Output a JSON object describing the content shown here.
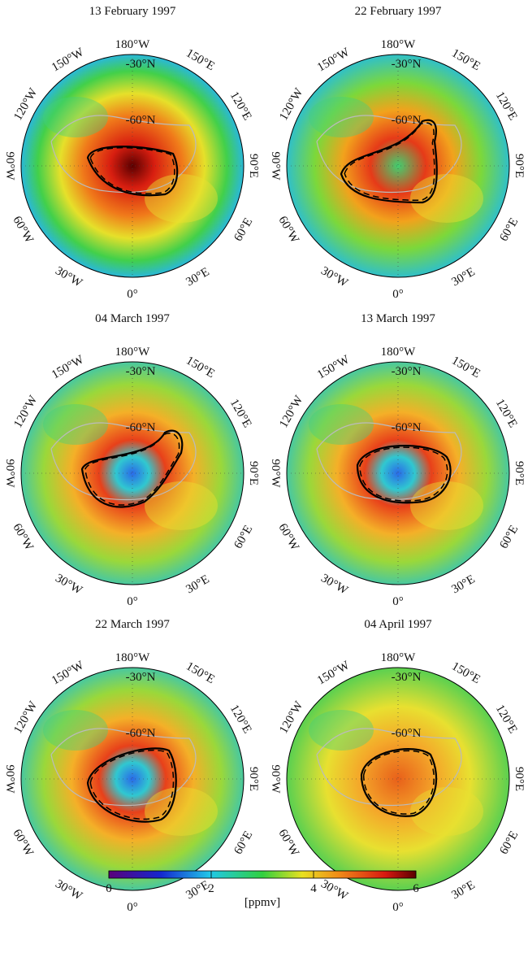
{
  "panels": [
    {
      "title": "13 February 1997",
      "labels": [
        "180°W",
        "-30°N",
        "150°W",
        "150°E",
        "120°W",
        "120°E",
        "90°W",
        "90°E",
        "60°W",
        "60°E",
        "30°W",
        "30°E",
        "0°",
        "-60°N"
      ]
    },
    {
      "title": "22 February 1997",
      "labels": [
        "180°W",
        "-30°N",
        "150°W",
        "150°E",
        "120°W",
        "120°E",
        "90°W",
        "90°E",
        "60°W",
        "60°E",
        "30°W",
        "30°E",
        "0°",
        "-60°N"
      ]
    },
    {
      "title": "04 March 1997",
      "labels": [
        "180°W",
        "-30°N",
        "150°W",
        "150°E",
        "120°W",
        "120°E",
        "90°W",
        "90°E",
        "60°W",
        "60°E",
        "30°W",
        "30°E",
        "0°",
        "-60°N"
      ]
    },
    {
      "title": "13 March 1997",
      "labels": [
        "180°W",
        "-30°N",
        "150°W",
        "150°E",
        "120°W",
        "120°E",
        "90°W",
        "90°E",
        "60°W",
        "60°E",
        "30°W",
        "30°E",
        "0°",
        "-60°N"
      ]
    },
    {
      "title": "22 March 1997",
      "labels": [
        "180°W",
        "-30°N",
        "150°W",
        "150°E",
        "120°W",
        "120°E",
        "90°W",
        "90°E",
        "60°W",
        "60°E",
        "30°W",
        "30°E",
        "0°",
        "-60°N"
      ]
    },
    {
      "title": "04 April 1997",
      "labels": [
        "180°W",
        "-30°N",
        "150°W",
        "150°E",
        "120°W",
        "120°E",
        "90°W",
        "90°E",
        "60°W",
        "60°E",
        "30°W",
        "30°E",
        "0°",
        "-60°N"
      ]
    }
  ],
  "colorbar": {
    "range": [
      0,
      6
    ],
    "ticks": [
      0,
      2,
      4,
      6
    ],
    "label": "[ppmv]"
  }
}
